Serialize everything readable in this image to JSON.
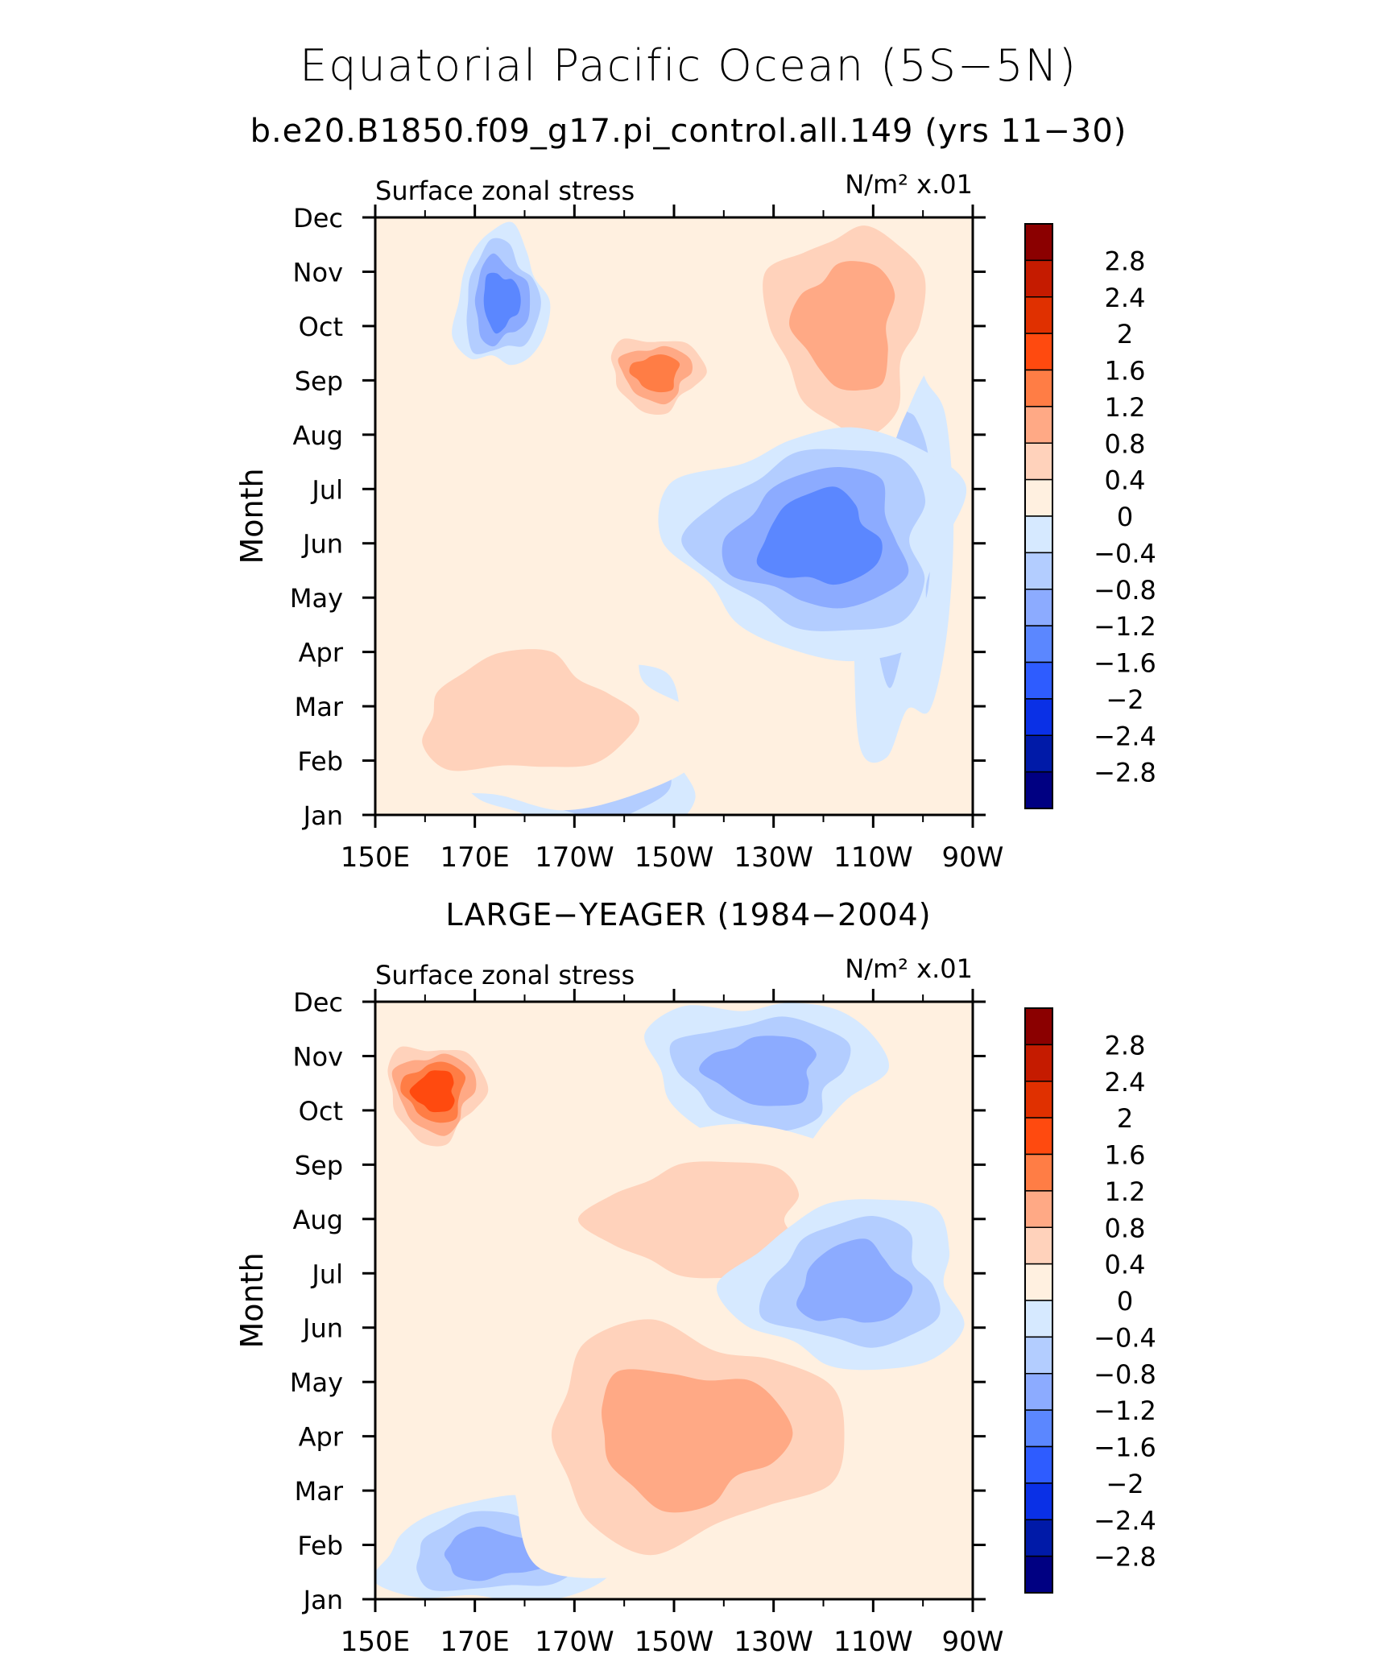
{
  "title": "Equatorial Pacific Ocean (5S−5N)",
  "subtitle": "b.e20.B1850.f09_g17.pi_control.all.149 (yrs 11−30)",
  "colorbar": {
    "levels": [
      "2.8",
      "2.4",
      "2",
      "1.6",
      "1.2",
      "0.8",
      "0.4",
      "0",
      "−0.4",
      "−0.8",
      "−1.2",
      "−1.6",
      "−2",
      "−2.4",
      "−2.8"
    ],
    "colors": [
      "#8b0000",
      "#c51b00",
      "#e03000",
      "#ff4a0f",
      "#ff7d45",
      "#ffa985",
      "#ffd2bb",
      "#fff0e0",
      "#d6e9ff",
      "#b3cdff",
      "#8cabff",
      "#5b87ff",
      "#2e5cff",
      "#0a30e6",
      "#001aa8",
      "#000082"
    ]
  },
  "chart_data": [
    {
      "type": "heatmap",
      "title": "",
      "left_label": "Surface zonal stress",
      "units": "N/m² x.01",
      "ylabel": "Month",
      "x_ticks": [
        "150E",
        "170E",
        "170W",
        "150W",
        "130W",
        "110W",
        "90W"
      ],
      "y_ticks": [
        "Jan",
        "Feb",
        "Mar",
        "Apr",
        "May",
        "Jun",
        "Jul",
        "Aug",
        "Sep",
        "Oct",
        "Nov",
        "Dec"
      ],
      "contour_levels": [
        -2.8,
        -2.4,
        -2,
        -1.6,
        -1.2,
        -0.8,
        -0.4,
        0,
        0.4,
        0.8,
        1.2,
        1.6,
        2,
        2.4,
        2.8
      ],
      "features": [
        {
          "x": [
            0.17,
            0.25
          ],
          "y": [
            0.08,
            0.2
          ],
          "value": -1.6
        },
        {
          "x": [
            0.83,
            0.92
          ],
          "y": [
            0.3,
            0.72
          ],
          "value": -0.8
        },
        {
          "x": [
            0.42,
            0.52
          ],
          "y": [
            0.22,
            0.3
          ],
          "value": 1.4
        },
        {
          "x": [
            0.7,
            0.88
          ],
          "y": [
            0.06,
            0.3
          ],
          "value": 1.0
        },
        {
          "x": [
            0.62,
            0.87
          ],
          "y": [
            0.44,
            0.64
          ],
          "value": -1.6
        },
        {
          "x": [
            0.25,
            0.45
          ],
          "y": [
            0.82,
            0.98
          ],
          "value": -1.0
        },
        {
          "x": [
            0.1,
            0.4
          ],
          "y": [
            0.75,
            0.92
          ],
          "value": 0.8
        }
      ]
    },
    {
      "type": "heatmap",
      "title": "LARGE−YEAGER (1984−2004)",
      "left_label": "Surface zonal stress",
      "units": "N/m² x.01",
      "ylabel": "Month",
      "x_ticks": [
        "150E",
        "170E",
        "170W",
        "150W",
        "130W",
        "110W",
        "90W"
      ],
      "y_ticks": [
        "Jan",
        "Feb",
        "Mar",
        "Apr",
        "May",
        "Jun",
        "Jul",
        "Aug",
        "Sep",
        "Oct",
        "Nov",
        "Dec"
      ],
      "contour_levels": [
        -2.8,
        -2.4,
        -2,
        -1.6,
        -1.2,
        -0.8,
        -0.4,
        0,
        0.4,
        0.8,
        1.2,
        1.6,
        2,
        2.4,
        2.8
      ],
      "features": [
        {
          "x": [
            0.1,
            0.3
          ],
          "y": [
            0.88,
            0.97
          ],
          "value": -1.2
        },
        {
          "x": [
            0.35,
            0.7
          ],
          "y": [
            0.6,
            0.85
          ],
          "value": 1.2
        },
        {
          "x": [
            0.05,
            0.15
          ],
          "y": [
            0.1,
            0.2
          ],
          "value": 1.8
        },
        {
          "x": [
            0.55,
            0.75
          ],
          "y": [
            0.05,
            0.18
          ],
          "value": -1.2
        },
        {
          "x": [
            0.4,
            0.7
          ],
          "y": [
            0.28,
            0.45
          ],
          "value": 0.6
        },
        {
          "x": [
            0.7,
            0.9
          ],
          "y": [
            0.4,
            0.55
          ],
          "value": -1.0
        }
      ]
    }
  ]
}
